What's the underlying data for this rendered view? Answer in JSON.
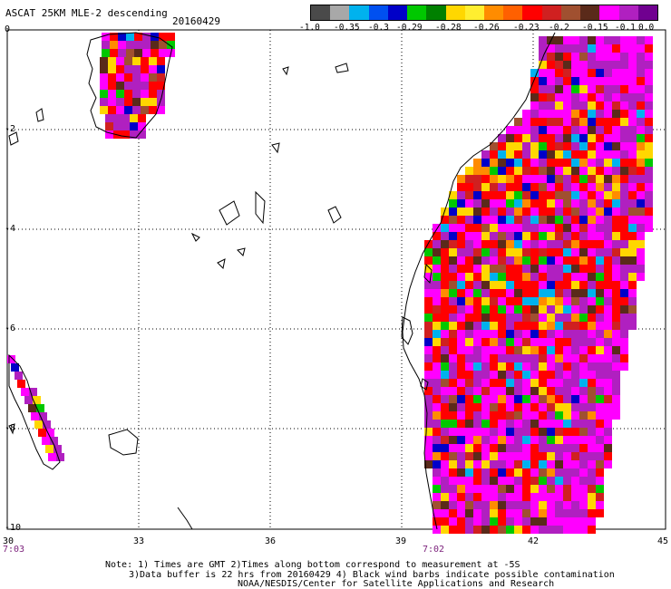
{
  "title": "ASCAT 25KM MLE-2 descending",
  "date": "20160429",
  "colorbar": {
    "colors": [
      "#4a4a4a",
      "#a8a8a8",
      "#00b2ee",
      "#0050f0",
      "#0000c8",
      "#00c800",
      "#008000",
      "#ffd700",
      "#ffee30",
      "#ff8c00",
      "#ff6000",
      "#ff0000",
      "#d02020",
      "#a05030",
      "#5a2a1a",
      "#ff00ff",
      "#b020c0",
      "#700090"
    ],
    "labels": [
      "-1.0",
      "-0.35",
      "-0.3",
      "-0.29",
      "-0.28",
      "-0.26",
      "-0.23",
      "-0.2",
      "-0.15",
      "-0.1",
      "0.0"
    ]
  },
  "lat_labels": [
    "0",
    "-2",
    "-4",
    "-6",
    "-8",
    "-10"
  ],
  "lon_labels": [
    "30",
    "33",
    "36",
    "39",
    "42",
    "45"
  ],
  "time_labels": [
    "7:03",
    "7:02"
  ],
  "notes": [
    "Note: 1) Times are GMT 2)Times along bottom correspond to measurement at -5S",
    "3)Data buffer is 22 hrs from 20160429 4) Black wind barbs indicate possible contamination",
    "NOAA/NESDIS/Center for Satellite Applications and Research"
  ]
}
